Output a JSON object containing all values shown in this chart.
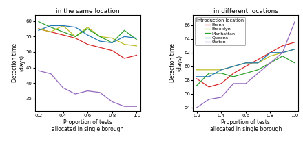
{
  "x": [
    0.2,
    0.3,
    0.4,
    0.5,
    0.6,
    0.7,
    0.8,
    0.9,
    1.0
  ],
  "left": {
    "title": "in the same location",
    "xlabel": "Proportion of tests\nallocated in single borough",
    "ylabel": "Detection time\n(days)",
    "ylim": [
      31,
      62
    ],
    "yticks": [
      35,
      40,
      45,
      50,
      55,
      60
    ],
    "series": {
      "Bronx": [
        57.5,
        56.5,
        55.5,
        54.5,
        52.5,
        51.5,
        50.5,
        48.0,
        49.0
      ],
      "Brooklyn": [
        57.5,
        56.5,
        58.5,
        55.0,
        58.0,
        55.0,
        54.5,
        52.5,
        52.0
      ],
      "Manhattan": [
        59.8,
        58.0,
        56.5,
        55.0,
        57.5,
        55.0,
        53.0,
        57.0,
        54.0
      ],
      "Queens": [
        57.0,
        58.5,
        58.5,
        58.0,
        55.5,
        53.5,
        53.0,
        55.0,
        54.5
      ],
      "Staten": [
        44.0,
        43.0,
        38.5,
        36.5,
        37.5,
        37.0,
        34.0,
        32.5,
        32.5
      ]
    }
  },
  "right": {
    "title": "in different locations",
    "xlabel": "Proportion of tests\nallocated in single borough",
    "ylabel": "Detection time\n(days)",
    "ylim": [
      53.5,
      67.5
    ],
    "yticks": [
      54,
      56,
      58,
      60,
      62,
      64,
      66
    ],
    "series": {
      "Bronx": [
        58.2,
        57.0,
        57.5,
        59.0,
        60.0,
        61.0,
        62.0,
        63.0,
        63.5
      ],
      "Brooklyn": [
        59.5,
        59.5,
        59.5,
        60.0,
        60.5,
        60.5,
        61.5,
        62.0,
        62.5
      ],
      "Manhattan": [
        57.2,
        59.0,
        59.0,
        58.5,
        59.0,
        59.5,
        60.5,
        61.5,
        60.5
      ],
      "Queens": [
        58.5,
        58.5,
        59.5,
        60.0,
        60.5,
        60.5,
        62.0,
        62.0,
        62.5
      ],
      "Staten": [
        54.0,
        55.2,
        55.5,
        57.5,
        57.5,
        59.0,
        60.5,
        62.0,
        66.5
      ]
    }
  },
  "colors": {
    "Bronx": "#d62728",
    "Brooklyn": "#bcbd22",
    "Manhattan": "#2ca02c",
    "Queens": "#1f77b4",
    "Staten": "#9467bd"
  },
  "legend_title": "Introduction location",
  "boroughs": [
    "Bronx",
    "Brooklyn",
    "Manhattan",
    "Queens",
    "Staten"
  ]
}
